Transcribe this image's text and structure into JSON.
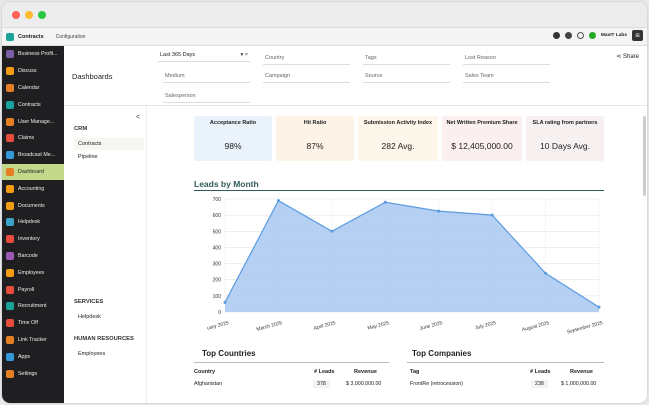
{
  "topbar": {
    "app_name": "Contracts",
    "menu": "Configuration",
    "company": "MaxIT Labs",
    "avatar": ""
  },
  "sidebar": {
    "items": [
      {
        "label": "Business Profil...",
        "color": "#7b5ea7"
      },
      {
        "label": "Discuss",
        "color": "#f39c12"
      },
      {
        "label": "Calendar",
        "color": "#e67e22"
      },
      {
        "label": "Contracts",
        "color": "#1aa39a"
      },
      {
        "label": "User Manage...",
        "color": "#e67e22"
      },
      {
        "label": "Claims",
        "color": "#e74c3c"
      },
      {
        "label": "Broadcast Me...",
        "color": "#3498db"
      },
      {
        "label": "Dashboard",
        "color": "#e67e22"
      },
      {
        "label": "Accounting",
        "color": "#f39c12"
      },
      {
        "label": "Documents",
        "color": "#f39c12"
      },
      {
        "label": "Helpdesk",
        "color": "#3aa3c9"
      },
      {
        "label": "Inventory",
        "color": "#e74c3c"
      },
      {
        "label": "Barcode",
        "color": "#9b59b6"
      },
      {
        "label": "Employees",
        "color": "#f39c12"
      },
      {
        "label": "Payroll",
        "color": "#e74c3c"
      },
      {
        "label": "Recruitment",
        "color": "#1aa39a"
      },
      {
        "label": "Time Off",
        "color": "#e74c3c"
      },
      {
        "label": "Link Tracker",
        "color": "#e67e22"
      },
      {
        "label": "Apps",
        "color": "#3498db"
      },
      {
        "label": "Settings",
        "color": "#e67e22"
      }
    ],
    "active_index": 7
  },
  "filters": {
    "page_title": "Dashboards",
    "date_range": "Last 365 Days",
    "medium": "Medium",
    "salesperson": "Salesperson",
    "country": "Country",
    "campaign": "Campaign",
    "tags": "Tags",
    "source": "Source",
    "lost_reason": "Lost Reason",
    "sales_team": "Sales Team",
    "share": "Share",
    "clear": "×"
  },
  "leftpanel": {
    "crm_heading": "CRM",
    "crm_items": [
      "Contracts",
      "Pipeline"
    ],
    "services_heading": "SERVICES",
    "services_items": [
      "Helpdesk"
    ],
    "hr_heading": "HUMAN RESOURCES",
    "hr_items": [
      "Employees"
    ],
    "collapse": "<"
  },
  "kpis": [
    {
      "title": "Acceptance Ratio",
      "value": "98%",
      "bg": "#eaf2fb"
    },
    {
      "title": "Hit Ratio",
      "value": "87%",
      "bg": "#fdf3e7"
    },
    {
      "title": "Submission Activity Index",
      "value": "282 Avg.",
      "bg": "#fdf6ea"
    },
    {
      "title": "Net Written Premium Share",
      "value": "$ 12,405,000.00",
      "bg": "#fbefef"
    },
    {
      "title": "SLA rating from partners",
      "value": "10 Days Avg.",
      "bg": "#f7f0f1"
    }
  ],
  "chart_data": {
    "type": "area",
    "title": "Leads by Month",
    "categories": [
      "February 2025",
      "March 2025",
      "April 2025",
      "May 2025",
      "June 2025",
      "July 2025",
      "August 2025",
      "September 2025"
    ],
    "values": [
      60,
      690,
      500,
      680,
      625,
      600,
      240,
      30
    ],
    "ylim": [
      0,
      700
    ],
    "yticks": [
      0,
      100,
      200,
      300,
      400,
      500,
      600,
      700
    ],
    "fill_color": "#a9c8f2",
    "line_color": "#5b9be0",
    "grid": true
  },
  "tables": {
    "countries": {
      "title": "Top Countries",
      "headers": [
        "Country",
        "# Leads",
        "Revenue"
      ],
      "rows": [
        [
          "Afghanistan",
          "378",
          "$ 3,000,000.00"
        ]
      ]
    },
    "companies": {
      "title": "Top Companies",
      "headers": [
        "Tag",
        "# Leads",
        "Revenue"
      ],
      "rows": [
        [
          "FrontRe (retrocession)",
          "238",
          "$ 1,000,000.00"
        ]
      ]
    }
  }
}
